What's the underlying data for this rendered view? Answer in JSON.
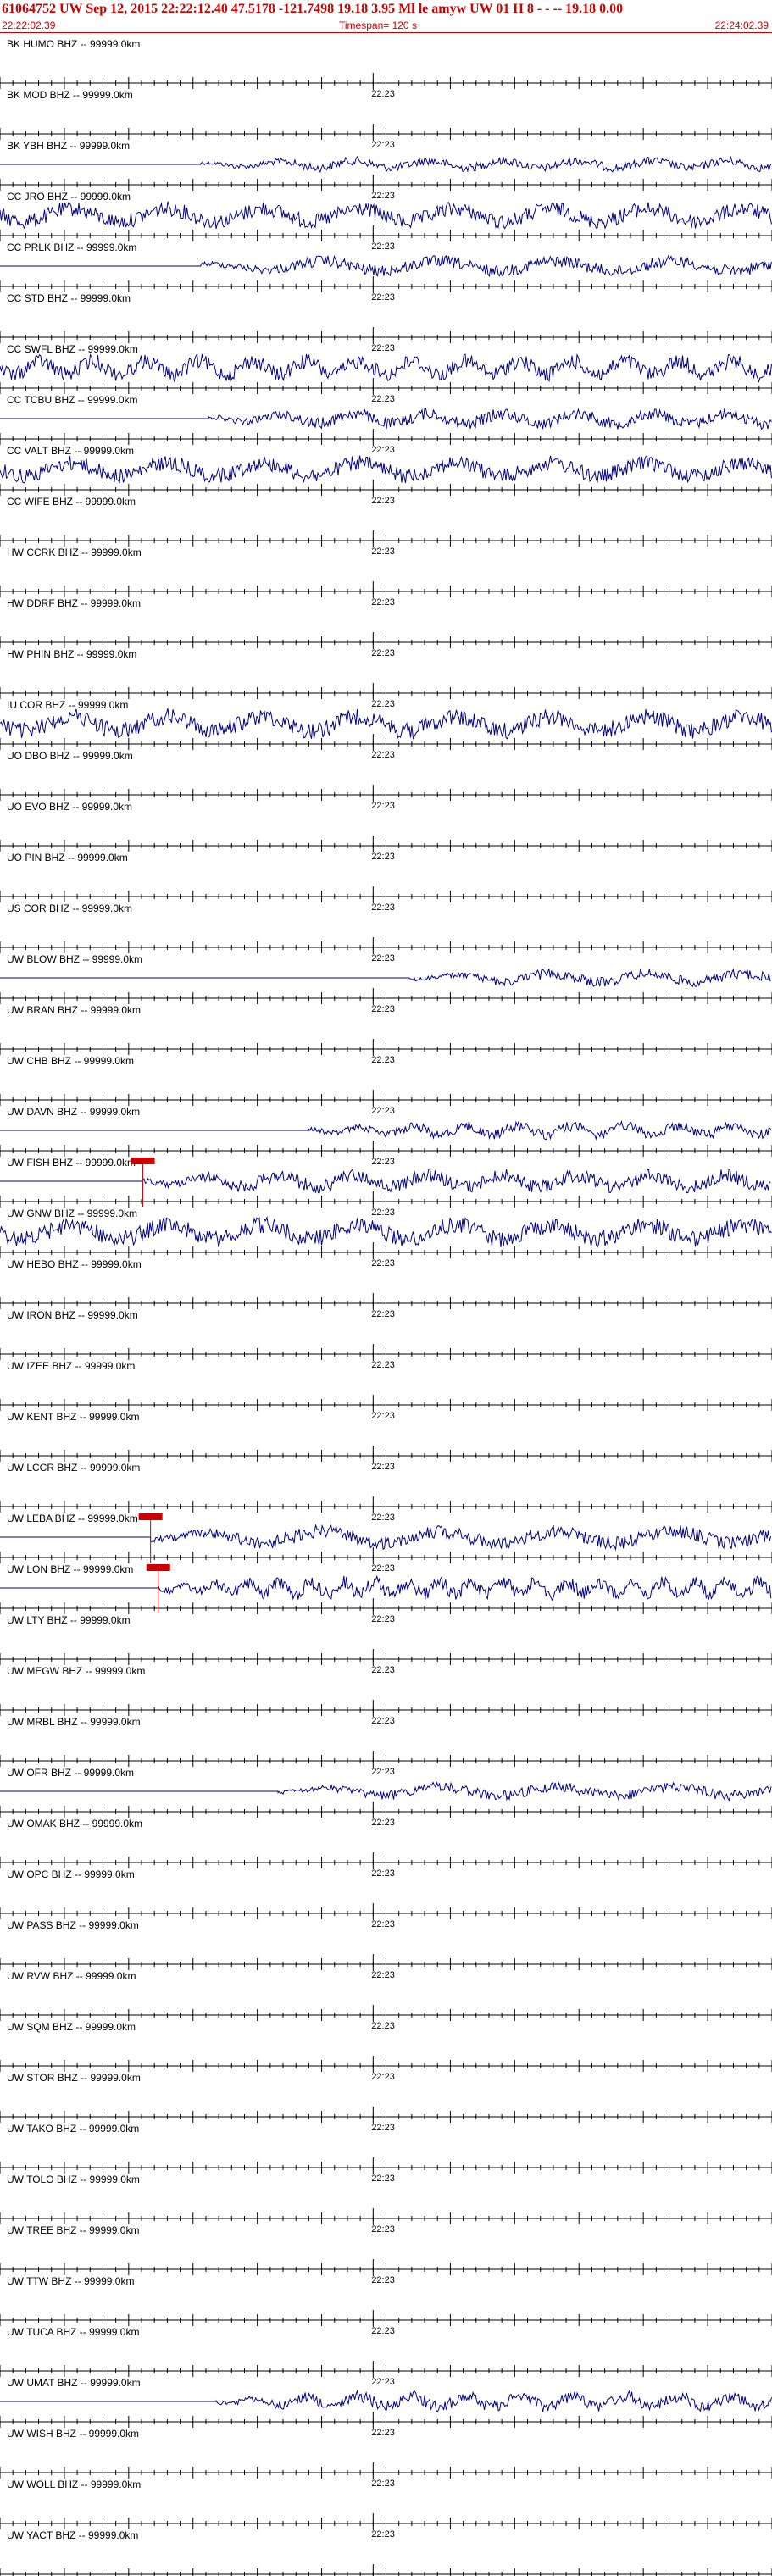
{
  "header": {
    "title": "61064752 UW Sep 12, 2015 22:22:12.40   47.5178 -121.7498 19.18 3.95 Ml le    amyw     UW 01 H    8   -  - -- 19.18 0.00",
    "start_time": "22:22:02.39",
    "timespan": "Timespan= 120 s",
    "end_time": "22:24:02.39"
  },
  "colors": {
    "header_text": "#cc0000",
    "trace": "#000080",
    "axis": "#000000",
    "pick": "#cc0000"
  },
  "time_tick_label": "22:23",
  "label_suffix": " BHZ -- 99999.0km",
  "stations": [
    {
      "name": "BK HUMO",
      "amp": 0,
      "start": 0,
      "end": 0,
      "pick": null
    },
    {
      "name": "BK MOD",
      "amp": 0,
      "start": 0,
      "end": 0,
      "pick": null
    },
    {
      "name": "BK YBH",
      "amp": 0.5,
      "start": 0.26,
      "end": 1,
      "pick": null
    },
    {
      "name": "CC JRO",
      "amp": 0.9,
      "start": 0,
      "end": 1,
      "pick": null
    },
    {
      "name": "CC PRLK",
      "amp": 0.7,
      "start": 0.26,
      "end": 1,
      "pick": null
    },
    {
      "name": "CC STD",
      "amp": 0,
      "start": 0,
      "end": 0,
      "pick": null
    },
    {
      "name": "CC SWFL",
      "amp": 0.9,
      "start": 0,
      "end": 1,
      "pick": null
    },
    {
      "name": "CC TCBU",
      "amp": 0.7,
      "start": 0.27,
      "end": 1,
      "pick": null
    },
    {
      "name": "CC VALT",
      "amp": 0.9,
      "start": 0,
      "end": 1,
      "pick": null
    },
    {
      "name": "CC WIFE",
      "amp": 0,
      "start": 0,
      "end": 0,
      "pick": null
    },
    {
      "name": "HW CCRK",
      "amp": 0,
      "start": 0,
      "end": 0,
      "pick": null
    },
    {
      "name": "HW DDRF",
      "amp": 0,
      "start": 0,
      "end": 0,
      "pick": null
    },
    {
      "name": "HW PHIN",
      "amp": 0,
      "start": 0,
      "end": 0,
      "pick": null
    },
    {
      "name": "IU COR",
      "amp": 1,
      "start": 0,
      "end": 1,
      "pick": null
    },
    {
      "name": "UO DBO",
      "amp": 0,
      "start": 0,
      "end": 0,
      "pick": null
    },
    {
      "name": "UO EVO",
      "amp": 0,
      "start": 0,
      "end": 0,
      "pick": null
    },
    {
      "name": "UO PIN",
      "amp": 0,
      "start": 0,
      "end": 0,
      "pick": null
    },
    {
      "name": "US COR",
      "amp": 0,
      "start": 0,
      "end": 0,
      "pick": null
    },
    {
      "name": "UW BLOW",
      "amp": 0.6,
      "start": 0.53,
      "end": 1,
      "pick": null
    },
    {
      "name": "UW BRAN",
      "amp": 0,
      "start": 0,
      "end": 0,
      "pick": null
    },
    {
      "name": "UW CHB",
      "amp": 0,
      "start": 0,
      "end": 0,
      "pick": null
    },
    {
      "name": "UW DAVN",
      "amp": 0.6,
      "start": 0.4,
      "end": 1,
      "pick": null
    },
    {
      "name": "UW FISH",
      "amp": 0.8,
      "start": 0.185,
      "end": 1,
      "pick": 0.185
    },
    {
      "name": "UW GNW",
      "amp": 1,
      "start": 0,
      "end": 1,
      "pick": null
    },
    {
      "name": "UW HEBO",
      "amp": 0,
      "start": 0,
      "end": 0,
      "pick": null
    },
    {
      "name": "UW IRON",
      "amp": 0,
      "start": 0,
      "end": 0,
      "pick": null
    },
    {
      "name": "UW IZEE",
      "amp": 0,
      "start": 0,
      "end": 0,
      "pick": null
    },
    {
      "name": "UW KENT",
      "amp": 0,
      "start": 0,
      "end": 0,
      "pick": null
    },
    {
      "name": "UW LCCR",
      "amp": 0,
      "start": 0,
      "end": 0,
      "pick": null
    },
    {
      "name": "UW LEBA",
      "amp": 0.8,
      "start": 0.195,
      "end": 1,
      "pick": 0.195
    },
    {
      "name": "UW LON",
      "amp": 0.8,
      "start": 0.205,
      "end": 1,
      "pick": 0.205
    },
    {
      "name": "UW LTY",
      "amp": 0,
      "start": 0,
      "end": 0,
      "pick": null
    },
    {
      "name": "UW MEGW",
      "amp": 0,
      "start": 0,
      "end": 0,
      "pick": null
    },
    {
      "name": "UW MRBL",
      "amp": 0,
      "start": 0,
      "end": 0,
      "pick": null
    },
    {
      "name": "UW OFR",
      "amp": 0.6,
      "start": 0.36,
      "end": 1,
      "pick": null
    },
    {
      "name": "UW OMAK",
      "amp": 0,
      "start": 0,
      "end": 0,
      "pick": null
    },
    {
      "name": "UW OPC",
      "amp": 0,
      "start": 0,
      "end": 0,
      "pick": null
    },
    {
      "name": "UW PASS",
      "amp": 0,
      "start": 0,
      "end": 0,
      "pick": null
    },
    {
      "name": "UW RVW",
      "amp": 0,
      "start": 0,
      "end": 0,
      "pick": null
    },
    {
      "name": "UW SQM",
      "amp": 0,
      "start": 0,
      "end": 0,
      "pick": null
    },
    {
      "name": "UW STOR",
      "amp": 0,
      "start": 0,
      "end": 0,
      "pick": null
    },
    {
      "name": "UW TAKO",
      "amp": 0,
      "start": 0,
      "end": 0,
      "pick": null
    },
    {
      "name": "UW TOLO",
      "amp": 0,
      "start": 0,
      "end": 0,
      "pick": null
    },
    {
      "name": "UW TREE",
      "amp": 0,
      "start": 0,
      "end": 0,
      "pick": null
    },
    {
      "name": "UW TTW",
      "amp": 0,
      "start": 0,
      "end": 0,
      "pick": null
    },
    {
      "name": "UW TUCA",
      "amp": 0,
      "start": 0,
      "end": 0,
      "pick": null
    },
    {
      "name": "UW UMAT",
      "amp": 0.7,
      "start": 0.28,
      "end": 1,
      "pick": null
    },
    {
      "name": "UW WISH",
      "amp": 0,
      "start": 0,
      "end": 0,
      "pick": null
    },
    {
      "name": "UW WOLL",
      "amp": 0,
      "start": 0,
      "end": 0,
      "pick": null
    },
    {
      "name": "UW YACT",
      "amp": 0,
      "start": 0,
      "end": 0,
      "pick": null
    }
  ]
}
